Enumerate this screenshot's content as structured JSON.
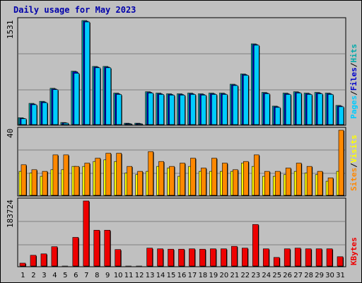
{
  "title": "Daily usage for May 2023",
  "panels": {
    "top": {
      "max_label": "1531",
      "legend": [
        "Pages",
        "Files",
        "Hits"
      ],
      "legend_sep": "/"
    },
    "mid": {
      "max_label": "40",
      "legend": [
        "Sites",
        "Visits"
      ],
      "legend_sep": "/"
    },
    "bottom": {
      "max_label": "183724",
      "legend": [
        "KBytes"
      ]
    }
  },
  "colors": {
    "hits": "#00aaaa",
    "files": "#0000cc",
    "pages": "#00ccff",
    "visits": "#ffff00",
    "sites": "#ff8800",
    "kbytes": "#ee0000",
    "weekend_day": "#008040",
    "weekday": "#000000",
    "title": "#0000aa"
  },
  "chart_data": {
    "type": "bar",
    "title": "Daily usage for May 2023",
    "days": [
      "1",
      "2",
      "3",
      "4",
      "5",
      "6",
      "7",
      "8",
      "9",
      "10",
      "11",
      "12",
      "13",
      "14",
      "15",
      "16",
      "17",
      "18",
      "19",
      "20",
      "21",
      "22",
      "23",
      "24",
      "25",
      "26",
      "27",
      "28",
      "29",
      "30",
      "31"
    ],
    "weekend_days": [
      "6",
      "7",
      "13",
      "14",
      "20",
      "21",
      "27",
      "28"
    ],
    "series": [
      {
        "name": "Hits",
        "panel": "top",
        "values": [
          110,
          320,
          350,
          540,
          40,
          790,
          1531,
          860,
          860,
          470,
          30,
          30,
          490,
          470,
          460,
          460,
          470,
          460,
          470,
          470,
          600,
          750,
          1190,
          480,
          280,
          470,
          490,
          470,
          480,
          470,
          290
        ]
      },
      {
        "name": "Files",
        "panel": "top",
        "values": [
          100,
          310,
          340,
          530,
          35,
          780,
          1520,
          850,
          850,
          460,
          25,
          25,
          480,
          460,
          450,
          450,
          460,
          450,
          460,
          460,
          590,
          740,
          1180,
          470,
          270,
          460,
          480,
          460,
          470,
          460,
          280
        ]
      },
      {
        "name": "Pages",
        "panel": "top",
        "values": [
          95,
          300,
          330,
          520,
          30,
          760,
          1510,
          840,
          840,
          450,
          20,
          20,
          470,
          450,
          440,
          440,
          450,
          440,
          450,
          450,
          580,
          730,
          1170,
          460,
          260,
          450,
          470,
          450,
          460,
          450,
          270
        ]
      },
      {
        "name": "Visits",
        "panel": "mid",
        "values": [
          15,
          14,
          12,
          16,
          16,
          18,
          18,
          21,
          22,
          21,
          14,
          13,
          15,
          18,
          17,
          12,
          18,
          15,
          15,
          15,
          15,
          20,
          18,
          12,
          12,
          13,
          15,
          14,
          13,
          9,
          15
        ]
      },
      {
        "name": "Sites",
        "panel": "mid",
        "values": [
          19,
          16,
          15,
          25,
          25,
          18,
          20,
          23,
          26,
          26,
          18,
          15,
          27,
          21,
          18,
          20,
          23,
          17,
          23,
          20,
          16,
          21,
          25,
          15,
          15,
          17,
          20,
          18,
          15,
          11,
          40
        ]
      },
      {
        "name": "KBytes",
        "panel": "bottom",
        "values": [
          10000,
          32000,
          36000,
          56000,
          2000,
          82000,
          183724,
          102000,
          102000,
          48000,
          2000,
          2000,
          52000,
          50000,
          49000,
          49000,
          50000,
          49000,
          50000,
          50000,
          57000,
          52000,
          118000,
          50000,
          26000,
          50000,
          52000,
          50000,
          50000,
          50000,
          28000
        ]
      }
    ]
  }
}
